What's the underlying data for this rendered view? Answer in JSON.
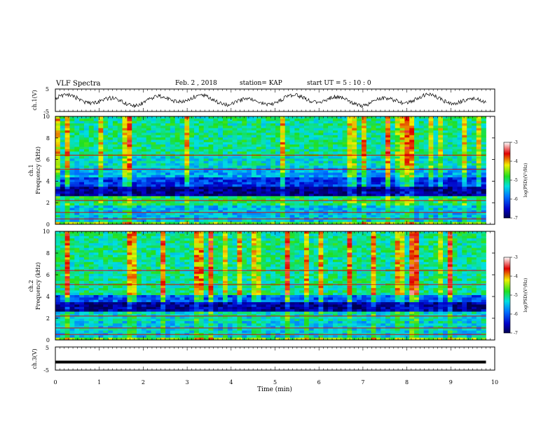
{
  "header": {
    "title": "VLF Spectra",
    "date": "Feb. 2 , 2018",
    "station": "station= KAP",
    "start": "start UT =  5 : 10 : 0"
  },
  "chart_data": [
    {
      "type": "line",
      "panel": "ch1-waveform",
      "ylabel": "ch.1(V)",
      "ylim": [
        -5,
        5
      ],
      "yticks": [
        "5",
        "-5"
      ],
      "xlim": [
        0,
        10
      ],
      "description_values": "noisy waveform oscillating roughly between -3 and 3 V over 0-9.8 min"
    },
    {
      "type": "heatmap",
      "panel": "ch1-spectrogram",
      "ylabel": [
        "ch.1",
        "Frequency (kHz)"
      ],
      "ylim": [
        0,
        10
      ],
      "yticks": [
        "0",
        "2",
        "4",
        "6",
        "8",
        "10"
      ],
      "xlim": [
        0,
        9.8
      ],
      "bands_khz": [
        {
          "from": 0.0,
          "to": 0.3,
          "level": -4.6
        },
        {
          "from": 0.3,
          "to": 1.8,
          "level": -5.5
        },
        {
          "from": 1.8,
          "to": 2.6,
          "level": -5.0
        },
        {
          "from": 2.6,
          "to": 3.4,
          "level": -6.8
        },
        {
          "from": 3.4,
          "to": 4.3,
          "level": -6.2
        },
        {
          "from": 4.3,
          "to": 5.2,
          "level": -5.6
        },
        {
          "from": 5.2,
          "to": 6.4,
          "level": -5.3
        },
        {
          "from": 6.4,
          "to": 10.0,
          "level": -5.1
        }
      ],
      "colorbar": {
        "label": "log(PSD)(V²/Hz)",
        "range": [
          -7,
          -3
        ],
        "ticks": [
          "-3",
          "-4",
          "-5",
          "-6",
          "-7"
        ]
      }
    },
    {
      "type": "heatmap",
      "panel": "ch2-spectrogram",
      "ylabel": [
        "ch.2",
        "Frequency (kHz)"
      ],
      "ylim": [
        0,
        10
      ],
      "yticks": [
        "0",
        "2",
        "4",
        "6",
        "8",
        "10"
      ],
      "xlim": [
        0,
        9.8
      ],
      "bands_khz": [
        {
          "from": 0.0,
          "to": 0.3,
          "level": -4.6
        },
        {
          "from": 0.3,
          "to": 1.8,
          "level": -5.4
        },
        {
          "from": 1.8,
          "to": 2.6,
          "level": -5.3
        },
        {
          "from": 2.6,
          "to": 3.4,
          "level": -6.7
        },
        {
          "from": 3.4,
          "to": 4.2,
          "level": -6.0
        },
        {
          "from": 4.2,
          "to": 10.0,
          "level": -5.1
        }
      ],
      "colorbar": {
        "label": "log(PSD)(V²/Hz)",
        "range": [
          -7,
          -3
        ],
        "ticks": [
          "-3",
          "-4",
          "-5",
          "-6",
          "-7"
        ]
      }
    },
    {
      "type": "line",
      "panel": "ch3-waveform",
      "ylabel": "ch.3(V)",
      "ylim": [
        -5,
        5
      ],
      "yticks": [
        "5",
        "-5"
      ],
      "xlabel": "Time (min)",
      "xlim": [
        0,
        10
      ],
      "xticks": [
        "0",
        "1",
        "2",
        "3",
        "4",
        "5",
        "6",
        "7",
        "8",
        "9",
        "10"
      ],
      "constant_value": -1.5,
      "x_end": 9.8
    }
  ]
}
